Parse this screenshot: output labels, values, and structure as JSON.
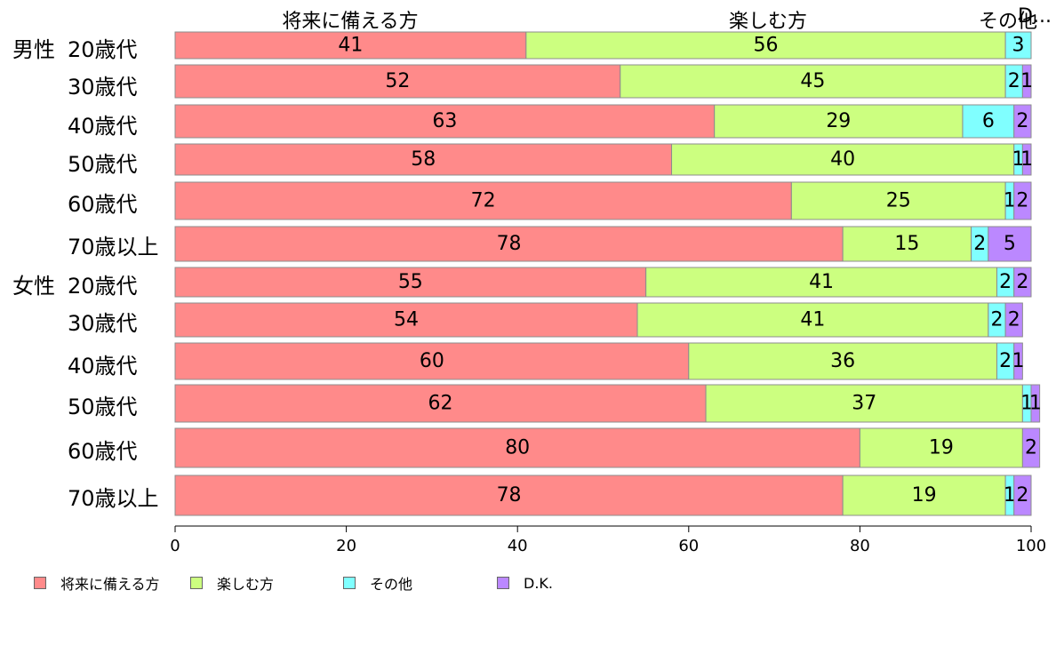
{
  "chart_data": {
    "type": "bar",
    "orientation": "horizontal",
    "stacked": true,
    "series": [
      {
        "name": "将来に備える方",
        "color": "#ff8a8a",
        "values": [
          41,
          52,
          63,
          58,
          72,
          78,
          55,
          54,
          60,
          62,
          80,
          78
        ]
      },
      {
        "name": "楽しむ方",
        "color": "#ccff80",
        "values": [
          56,
          45,
          29,
          40,
          25,
          15,
          41,
          41,
          36,
          37,
          19,
          19
        ]
      },
      {
        "name": "その他",
        "color": "#80ffff",
        "values": [
          3,
          2,
          6,
          1,
          1,
          2,
          2,
          2,
          2,
          1,
          0,
          1
        ]
      },
      {
        "name": "D.K.",
        "color": "#bb88ff",
        "values": [
          0,
          1,
          2,
          1,
          2,
          5,
          2,
          2,
          1,
          1,
          2,
          2
        ]
      }
    ],
    "groups": [
      {
        "label": "男性",
        "rows": [
          0,
          1,
          2,
          3,
          4,
          5
        ]
      },
      {
        "label": "女性",
        "rows": [
          6,
          7,
          8,
          9,
          10,
          11
        ]
      }
    ],
    "categories": [
      "20歳代",
      "30歳代",
      "40歳代",
      "50歳代",
      "60歳代",
      "70歳以上",
      "20歳代",
      "30歳代",
      "40歳代",
      "50歳代",
      "60歳代",
      "70歳以上"
    ],
    "segment_headers": [
      "将来に備える方",
      "楽しむ方",
      "その他",
      "D..."
    ],
    "xlim": [
      0,
      100
    ],
    "xticks": [
      "0",
      "20",
      "40",
      "60",
      "80",
      "100"
    ],
    "legend_position": "bottom"
  }
}
